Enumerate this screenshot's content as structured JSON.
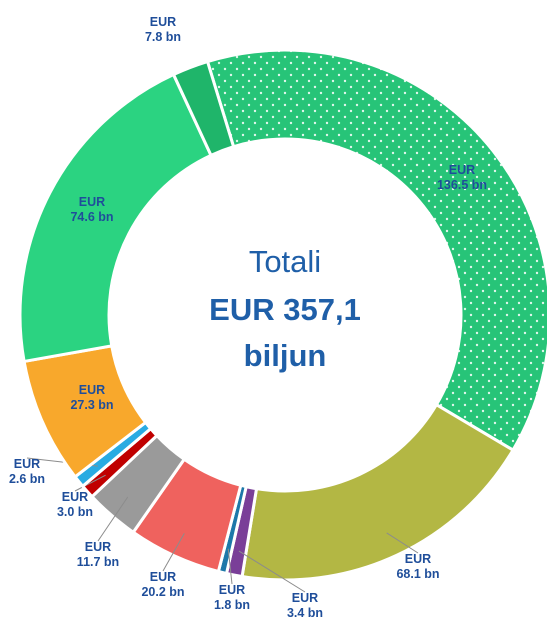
{
  "chart_data": {
    "type": "donut",
    "center_text": [
      "Totali",
      "EUR 357,1",
      "biljun"
    ],
    "values": [
      136.5,
      68.1,
      3.4,
      1.8,
      20.2,
      11.7,
      3.0,
      2.6,
      27.3,
      74.6,
      7.8
    ],
    "value_labels": [
      "EUR\n136.5 bn",
      "EUR\n68.1 bn",
      "EUR\n3.4 bn",
      "EUR\n1.8 bn",
      "EUR\n20.2 bn",
      "EUR\n11.7 bn",
      "EUR\n3.0 bn",
      "EUR\n2.6 bn",
      "EUR\n27.3 bn",
      "EUR\n74.6 bn",
      "EUR\n7.8 bn"
    ],
    "colors": [
      "#27c478",
      "#b3b744",
      "#7a3f98",
      "#1d78a9",
      "#ef625e",
      "#9a9a9a",
      "#c00000",
      "#29abe2",
      "#f8a82c",
      "#2bd381",
      "#1fb56a"
    ],
    "pattern": [
      "dots",
      null,
      null,
      null,
      null,
      null,
      null,
      null,
      null,
      null,
      null
    ]
  }
}
